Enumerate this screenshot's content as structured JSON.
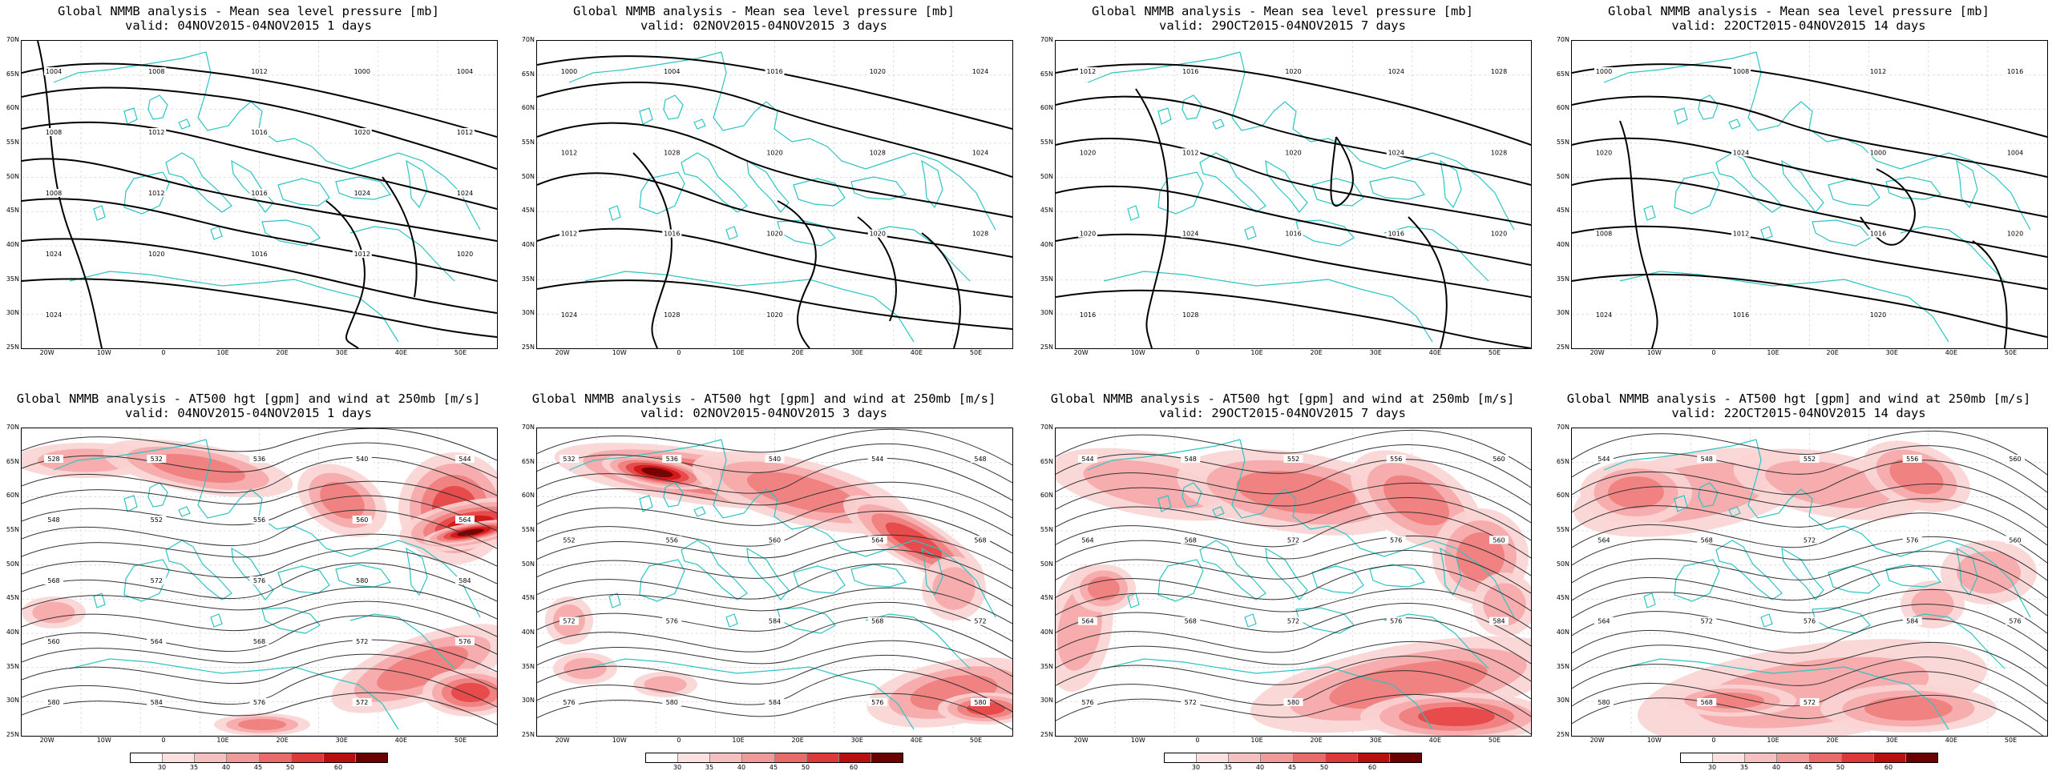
{
  "colors": {
    "coast": "#2dc4c4",
    "isobar": "#000000",
    "height": "#333333",
    "wind_levels": [
      "#ffffff",
      "#fbd4d4",
      "#f6a9a9",
      "#ef7d7d",
      "#e64545",
      "#d01515",
      "#6b0000"
    ]
  },
  "lat_labels": [
    "70N",
    "65N",
    "60N",
    "55N",
    "50N",
    "45N",
    "40N",
    "35N",
    "30N",
    "25N"
  ],
  "lon_labels": [
    "20W",
    "10W",
    "0",
    "10E",
    "20E",
    "30E",
    "40E",
    "50E"
  ],
  "colorbar": {
    "ticks": [
      "30",
      "35",
      "40",
      "45",
      "50",
      "60"
    ]
  },
  "top_panels": [
    {
      "title_line1": "Global NMMB analysis - Mean sea level pressure [mb]",
      "title_line2": "valid: 04NOV2015-04NOV2015  1 days",
      "contour_labels": [
        "1004",
        "1008",
        "1012",
        "1000",
        "1004",
        "1008",
        "1012",
        "1016",
        "1020",
        "1012",
        "1008",
        "1012",
        "1016",
        "1024",
        "1024",
        "1024",
        "1020",
        "1016",
        "1012",
        "1020",
        "1024"
      ]
    },
    {
      "title_line1": "Global NMMB analysis - Mean sea level pressure [mb]",
      "title_line2": "valid: 02NOV2015-04NOV2015  3 days",
      "contour_labels": [
        "1000",
        "1004",
        "1016",
        "1020",
        "1024",
        "1012",
        "1028",
        "1020",
        "1028",
        "1024",
        "1012",
        "1016",
        "1020",
        "1020",
        "1028",
        "1024",
        "1028",
        "1020"
      ]
    },
    {
      "title_line1": "Global NMMB analysis - Mean sea level pressure [mb]",
      "title_line2": "valid: 29OCT2015-04NOV2015  7 days",
      "contour_labels": [
        "1012",
        "1016",
        "1020",
        "1024",
        "1028",
        "1020",
        "1012",
        "1020",
        "1024",
        "1028",
        "1020",
        "1024",
        "1016",
        "1016",
        "1020",
        "1016",
        "1028"
      ]
    },
    {
      "title_line1": "Global NMMB analysis - Mean sea level pressure [mb]",
      "title_line2": "valid: 22OCT2015-04NOV2015  14 days",
      "contour_labels": [
        "1000",
        "1008",
        "1012",
        "1016",
        "1020",
        "1024",
        "1000",
        "1004",
        "1008",
        "1012",
        "1016",
        "1020",
        "1024",
        "1016",
        "1020"
      ]
    }
  ],
  "bottom_panels": [
    {
      "title_line1": "Global NMMB analysis - AT500 hgt [gpm] and wind at 250mb [m/s]",
      "title_line2": "valid: 04NOV2015-04NOV2015  1 days",
      "contour_labels": [
        "528",
        "532",
        "536",
        "540",
        "544",
        "548",
        "552",
        "556",
        "560",
        "564",
        "568",
        "572",
        "576",
        "580",
        "584",
        "560",
        "564",
        "568",
        "572",
        "576",
        "580",
        "584",
        "576",
        "572"
      ]
    },
    {
      "title_line1": "Global NMMB analysis - AT500 hgt [gpm] and wind at 250mb [m/s]",
      "title_line2": "valid: 02NOV2015-04NOV2015  3 days",
      "contour_labels": [
        "532",
        "536",
        "540",
        "544",
        "548",
        "552",
        "556",
        "560",
        "564",
        "568",
        "572",
        "576",
        "584",
        "568",
        "572",
        "576",
        "580",
        "584",
        "576",
        "580"
      ]
    },
    {
      "title_line1": "Global NMMB analysis - AT500 hgt [gpm] and wind at 250mb [m/s]",
      "title_line2": "valid: 29OCT2015-04NOV2015  7 days",
      "contour_labels": [
        "544",
        "548",
        "552",
        "556",
        "560",
        "564",
        "568",
        "572",
        "576",
        "560",
        "564",
        "568",
        "572",
        "576",
        "584",
        "576",
        "572",
        "580"
      ]
    },
    {
      "title_line1": "Global NMMB analysis - AT500 hgt [gpm] and wind at 250mb [m/s]",
      "title_line2": "valid: 22OCT2015-04NOV2015  14 days",
      "contour_labels": [
        "544",
        "548",
        "552",
        "556",
        "560",
        "564",
        "568",
        "572",
        "576",
        "560",
        "564",
        "572",
        "576",
        "584",
        "576",
        "580",
        "568",
        "572"
      ]
    }
  ]
}
